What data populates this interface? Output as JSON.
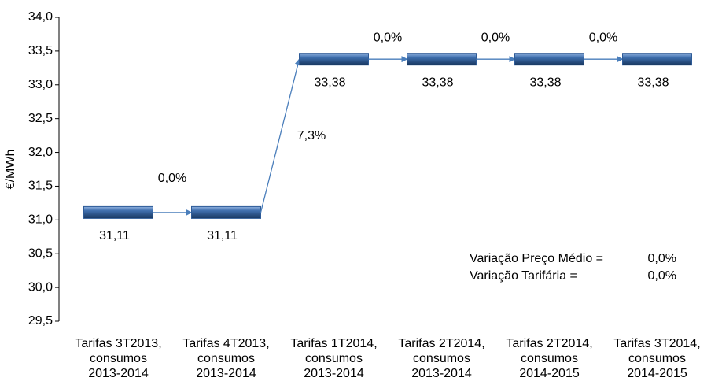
{
  "chart_data": {
    "type": "floating-bar",
    "y_label": "€/MWh",
    "categories": [
      [
        "Tarifas 3T2013,",
        "consumos",
        "2013-2014"
      ],
      [
        "Tarifas 4T2013,",
        "consumos",
        "2013-2014"
      ],
      [
        "Tarifas 1T2014,",
        "consumos",
        "2013-2014"
      ],
      [
        "Tarifas 2T2014,",
        "consumos",
        "2013-2014"
      ],
      [
        "Tarifas 2T2014,",
        "consumos",
        "2014-2015"
      ],
      [
        "Tarifas 3T2014,",
        "consumos",
        "2014-2015"
      ]
    ],
    "values": [
      31.11,
      31.11,
      33.38,
      33.38,
      33.38,
      33.38
    ],
    "value_labels": [
      "31,11",
      "31,11",
      "33,38",
      "33,38",
      "33,38",
      "33,38"
    ],
    "change_labels": [
      "0,0%",
      "7,3%",
      "0,0%",
      "0,0%",
      "0,0%"
    ],
    "color": "#2e5b97",
    "arrow_color": "#4a7ebb",
    "ylim": [
      29.5,
      34.0
    ],
    "yticks": [
      {
        "value": 29.5,
        "label": "29,5"
      },
      {
        "value": 30.0,
        "label": "30,0"
      },
      {
        "value": 30.5,
        "label": "30,5"
      },
      {
        "value": 31.0,
        "label": "31,0"
      },
      {
        "value": 31.5,
        "label": "31,5"
      },
      {
        "value": 32.0,
        "label": "32,0"
      },
      {
        "value": 32.5,
        "label": "32,5"
      },
      {
        "value": 33.0,
        "label": "33,0"
      },
      {
        "value": 33.5,
        "label": "33,5"
      },
      {
        "value": 34.0,
        "label": "34,0"
      }
    ],
    "notes": [
      {
        "label": "Variação Preço Médio =",
        "value": "0,0%"
      },
      {
        "label": "Variação Tarifária =",
        "value": "0,0%"
      }
    ]
  }
}
